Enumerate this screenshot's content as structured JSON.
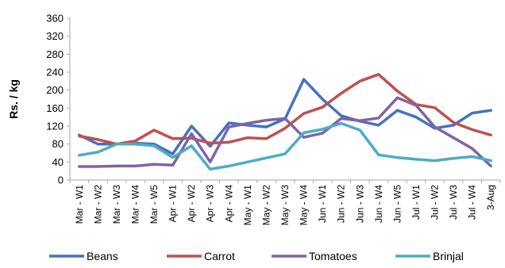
{
  "chart_data": {
    "type": "line",
    "title": "",
    "xlabel": "",
    "ylabel": "Rs. / kg",
    "ylim": [
      0,
      360
    ],
    "yticks": [
      0,
      40,
      80,
      120,
      160,
      200,
      240,
      280,
      320,
      360
    ],
    "grid": false,
    "legend": "bottom",
    "categories": [
      "Mar - W1",
      "Mar - W2",
      "Mar - W3",
      "Mar - W4",
      "Mar - W5",
      "Apr - W1",
      "Apr - W2",
      "Apr - W3",
      "Apr - W4",
      "May - W1",
      "May - W2",
      "May - W3",
      "May - W4",
      "Jun - W1",
      "Jun - W2",
      "Jun - W3",
      "Jun - W4",
      "Jun - W5",
      "Jul - W1",
      "Jul - W2",
      "Jul - W3",
      "Jul - W4",
      "3-Aug"
    ],
    "series": [
      {
        "name": "Beans",
        "color": "#4472C4",
        "values": [
          100,
          80,
          80,
          82,
          80,
          58,
          120,
          75,
          127,
          122,
          118,
          136,
          224,
          180,
          143,
          131,
          122,
          155,
          140,
          115,
          122,
          149,
          155
        ]
      },
      {
        "name": "Carrot",
        "color": "#C0504D",
        "values": [
          98,
          90,
          80,
          87,
          111,
          92,
          93,
          82,
          84,
          94,
          92,
          115,
          148,
          162,
          193,
          220,
          235,
          198,
          168,
          161,
          128,
          112,
          100
        ]
      },
      {
        "name": "Tomatoes",
        "color": "#8064A2",
        "values": [
          30,
          30,
          31,
          31,
          35,
          33,
          103,
          40,
          118,
          126,
          133,
          137,
          95,
          104,
          137,
          132,
          138,
          183,
          166,
          118,
          94,
          70,
          31
        ]
      },
      {
        "name": "Brinjal",
        "color": "#4BACC6",
        "values": [
          55,
          62,
          80,
          80,
          76,
          50,
          76,
          24,
          31,
          40,
          49,
          58,
          105,
          113,
          126,
          111,
          56,
          50,
          46,
          43,
          48,
          52,
          43
        ]
      }
    ]
  }
}
